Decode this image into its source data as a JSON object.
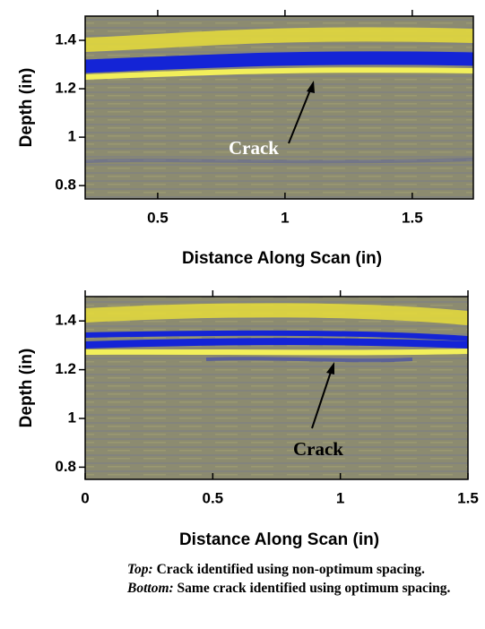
{
  "chart_data": [
    {
      "type": "image",
      "x_label": "Distance Along Scan (in)",
      "y_label": "Depth (in)",
      "xlim": [
        0.215,
        1.74
      ],
      "ylim": [
        0.745,
        1.5
      ],
      "xticks": [
        0.5,
        1,
        1.5
      ],
      "yticks": [
        0.8,
        1,
        1.2,
        1.4
      ],
      "annotation": "Crack"
    },
    {
      "type": "image",
      "x_label": "Distance Along Scan (in)",
      "y_label": "Depth (in)",
      "xlim": [
        0,
        1.5
      ],
      "ylim": [
        0.75,
        1.5
      ],
      "xticks": [
        0,
        0.5,
        1,
        1.5
      ],
      "yticks": [
        0.8,
        1,
        1.2,
        1.4
      ],
      "annotation": "Crack"
    }
  ],
  "caption": {
    "top_label": "Top:",
    "top_text": "Crack identified using non-optimum spacing.",
    "bottom_label": "Bottom:",
    "bottom_text": "Same crack identified using optimum spacing."
  }
}
